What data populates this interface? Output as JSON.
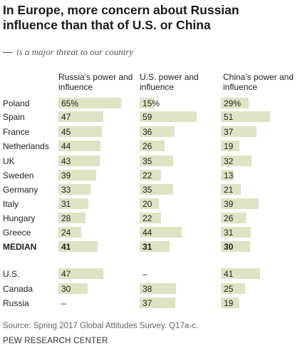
{
  "title": "In Europe, more concern about Russian influence than that of U.S. or China",
  "subtitle": "is a major threat to our country",
  "source": "Source: Spring 2017 Global Attitudes Survey. Q17a-c.",
  "organization": "PEW RESEARCH CENTER",
  "colors": {
    "bar": "#dfe3c4"
  },
  "chart_data": {
    "type": "bar",
    "columns": [
      "Russia's power and influence",
      "U.S. power and influence",
      "China's power and influence"
    ],
    "rows": [
      {
        "label": "Poland",
        "values": [
          65,
          15,
          29
        ],
        "display": [
          "65%",
          "15%",
          "29%"
        ],
        "bold": false
      },
      {
        "label": "Spain",
        "values": [
          47,
          59,
          51
        ],
        "display": [
          "47",
          "59",
          "51"
        ],
        "bold": false
      },
      {
        "label": "France",
        "values": [
          45,
          36,
          37
        ],
        "display": [
          "45",
          "36",
          "37"
        ],
        "bold": false
      },
      {
        "label": "Netherlands",
        "values": [
          44,
          26,
          19
        ],
        "display": [
          "44",
          "26",
          "19"
        ],
        "bold": false
      },
      {
        "label": "UK",
        "values": [
          43,
          35,
          32
        ],
        "display": [
          "43",
          "35",
          "32"
        ],
        "bold": false
      },
      {
        "label": "Sweden",
        "values": [
          39,
          22,
          13
        ],
        "display": [
          "39",
          "22",
          "13"
        ],
        "bold": false
      },
      {
        "label": "Germany",
        "values": [
          33,
          35,
          21
        ],
        "display": [
          "33",
          "35",
          "21"
        ],
        "bold": false
      },
      {
        "label": "Italy",
        "values": [
          31,
          20,
          39
        ],
        "display": [
          "31",
          "20",
          "39"
        ],
        "bold": false
      },
      {
        "label": "Hungary",
        "values": [
          28,
          22,
          26
        ],
        "display": [
          "28",
          "22",
          "26"
        ],
        "bold": false
      },
      {
        "label": "Greece",
        "values": [
          24,
          44,
          31
        ],
        "display": [
          "24",
          "44",
          "31"
        ],
        "bold": false
      },
      {
        "label": "MEDIAN",
        "values": [
          41,
          31,
          30
        ],
        "display": [
          "41",
          "31",
          "30"
        ],
        "bold": true
      },
      {
        "label": "U.S.",
        "values": [
          47,
          null,
          41
        ],
        "display": [
          "47",
          "–",
          "41"
        ],
        "bold": false
      },
      {
        "label": "Canada",
        "values": [
          30,
          38,
          25
        ],
        "display": [
          "30",
          "38",
          "25"
        ],
        "bold": false
      },
      {
        "label": "Russia",
        "values": [
          null,
          37,
          19
        ],
        "display": [
          "–",
          "37",
          "19"
        ],
        "bold": false
      }
    ]
  }
}
